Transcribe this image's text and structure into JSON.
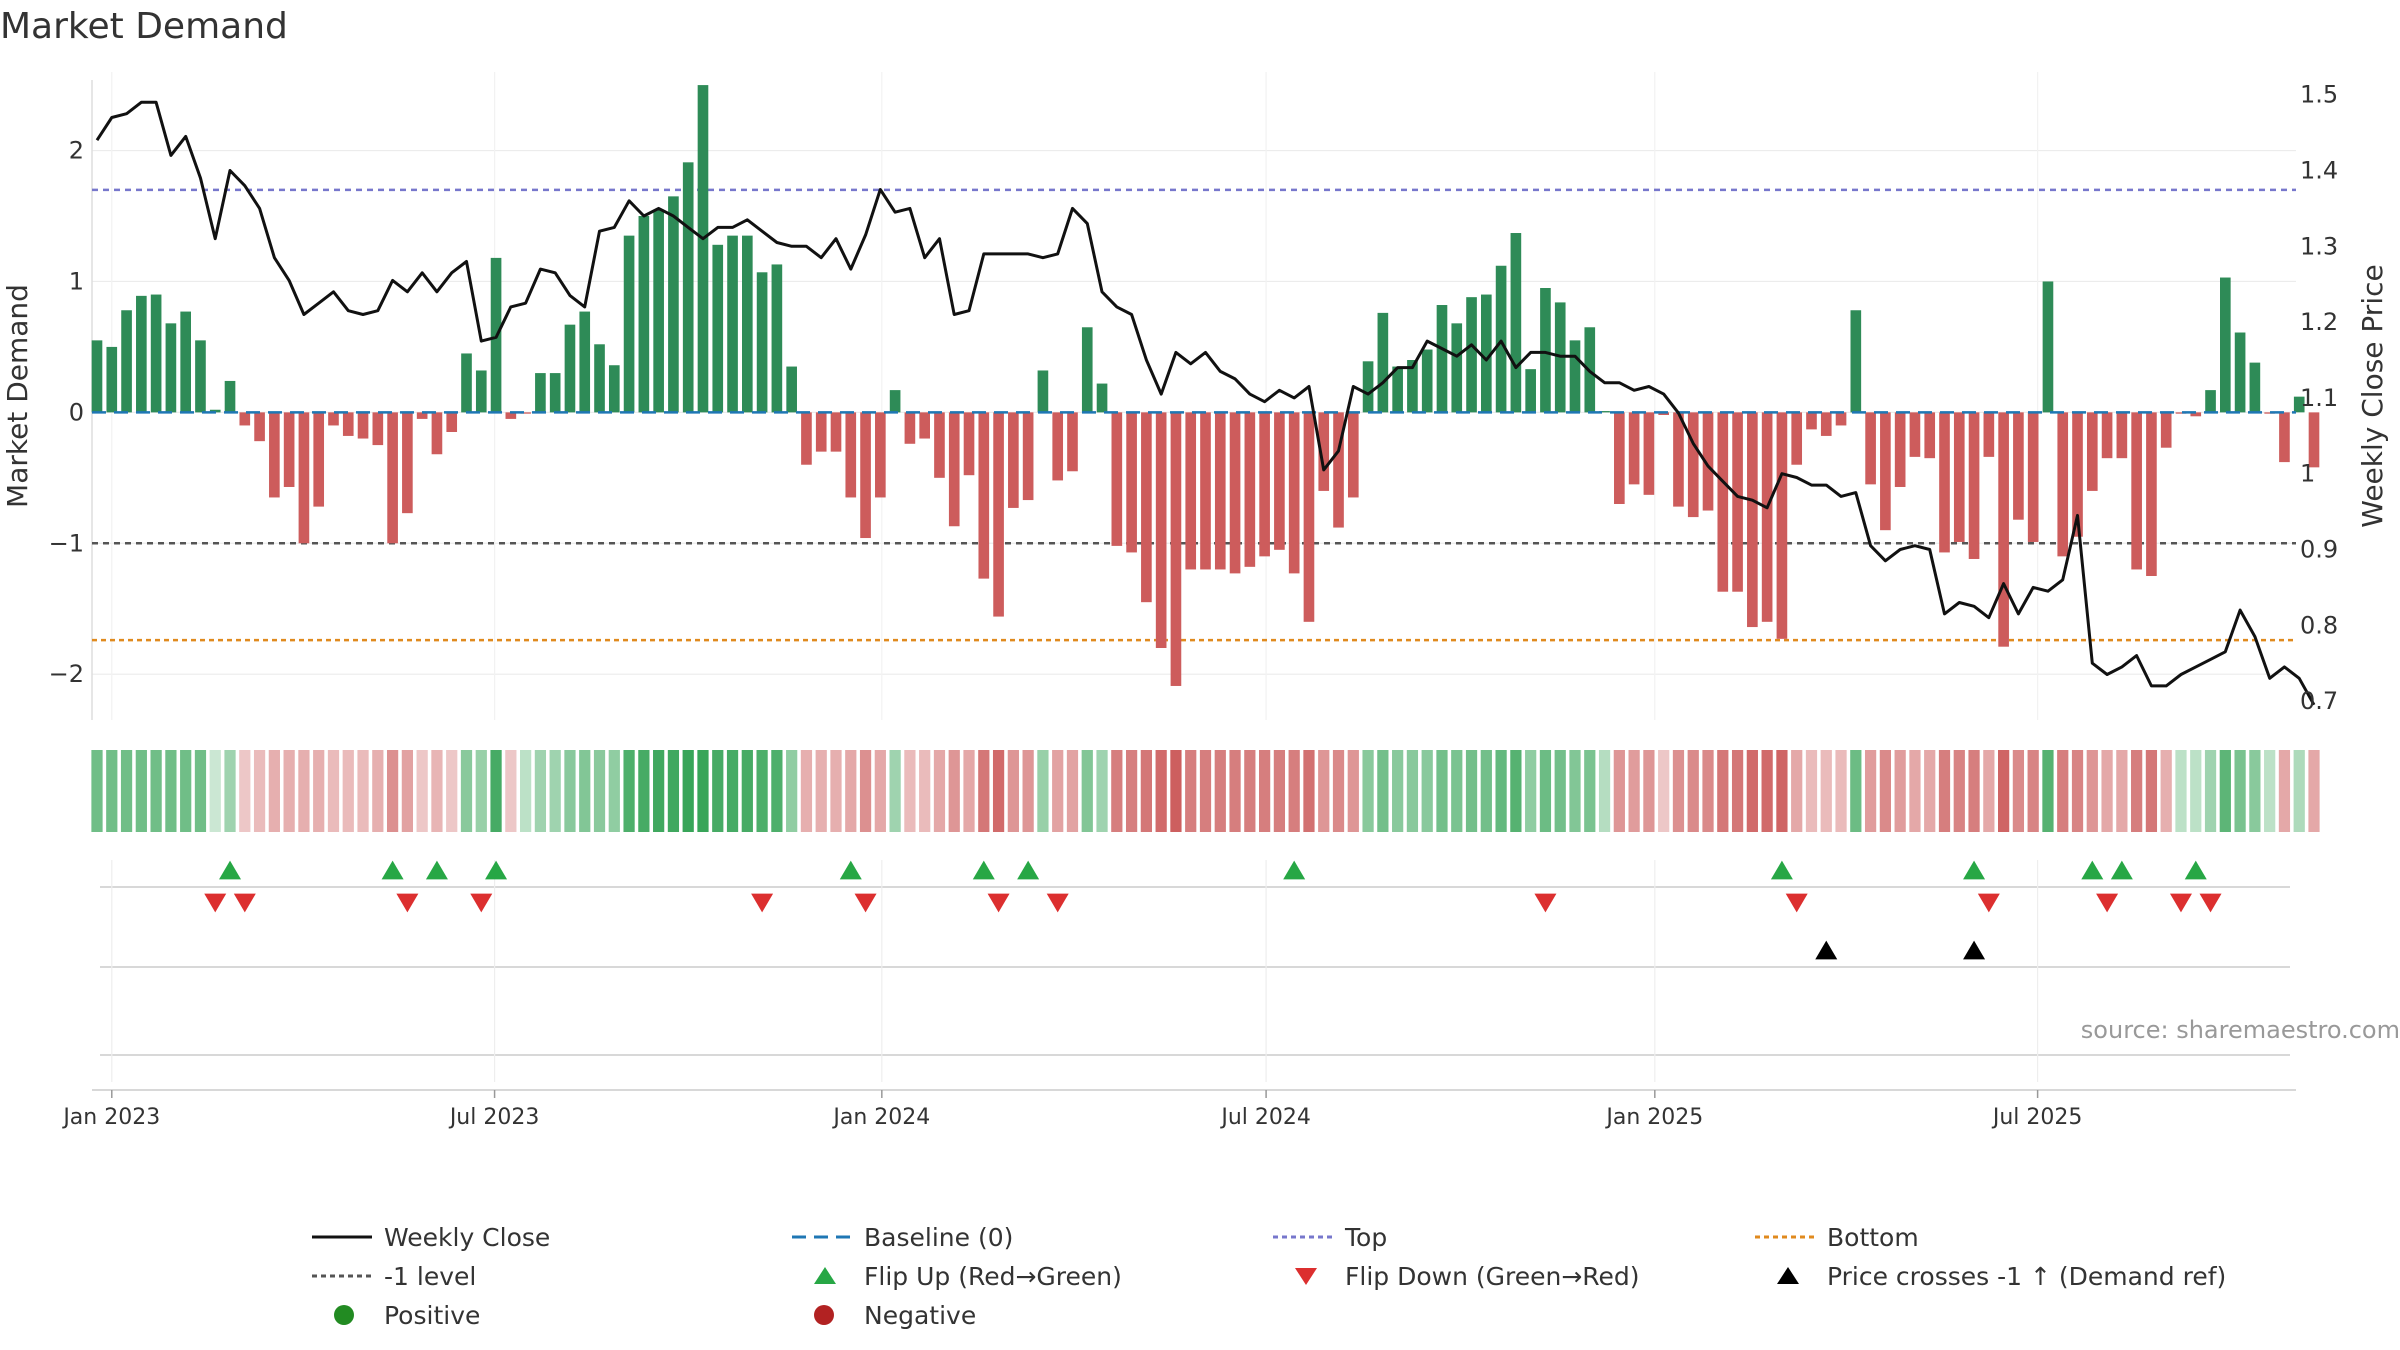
{
  "chart_title": "Market Demand",
  "source": "source: sharemaestro.com",
  "colors": {
    "positive": "#2E8B57",
    "negative": "#CD5C5C",
    "weekly_close": "#111111",
    "baseline": "#1f77b4",
    "top": "#7777cc",
    "minus1": "#555555",
    "bottom": "#e08a1e",
    "flip_up": "#27a745",
    "flip_down": "#dc2f2f",
    "cross_marker": "#000000",
    "legend_positive": "#228B22",
    "legend_negative": "#B22222"
  },
  "chart_data": {
    "type": "bar+line",
    "title": "Market Demand",
    "ylabel_left": "Market Demand",
    "ylabel_right": "Weekly Close Price",
    "ylim_left": [
      -2.35,
      2.6
    ],
    "ylim_right": [
      0.675,
      1.53
    ],
    "left_ticks": [
      2,
      1,
      0,
      -1,
      -2
    ],
    "left_tick_labels": [
      "2",
      "1",
      "0",
      "−1",
      "−2"
    ],
    "right_ticks": [
      1.5,
      1.4,
      1.3,
      1.2,
      1.1,
      1.0,
      0.9,
      0.8,
      0.7
    ],
    "right_tick_labels": [
      "1.5",
      "1.4",
      "1.3",
      "1.2",
      "1.1",
      "1",
      "0.9",
      "0.8",
      "0.7"
    ],
    "x_start": "2022-12-26",
    "week_days": 7,
    "x_ticks": [
      {
        "label": "Jan 2023",
        "week": 1.0
      },
      {
        "label": "Jul 2023",
        "week": 26.9
      },
      {
        "label": "Jan 2024",
        "week": 53.1
      },
      {
        "label": "Jul 2024",
        "week": 79.1
      },
      {
        "label": "Jan 2025",
        "week": 105.4
      },
      {
        "label": "Jul 2025",
        "week": 131.3
      }
    ],
    "reference_lines": {
      "top": 1.7,
      "minus1": -1.0,
      "bottom": -1.74,
      "baseline": 0
    },
    "market_demand": [
      0.55,
      0.5,
      0.78,
      0.89,
      0.9,
      0.68,
      0.77,
      0.55,
      0.02,
      0.24,
      -0.1,
      -0.22,
      -0.65,
      -0.57,
      -1.0,
      -0.72,
      -0.1,
      -0.18,
      -0.2,
      -0.25,
      -1.0,
      -0.77,
      -0.05,
      -0.32,
      -0.15,
      0.45,
      0.32,
      1.18,
      -0.05,
      -0.01,
      0.3,
      0.3,
      0.67,
      0.77,
      0.52,
      0.36,
      1.35,
      1.5,
      1.55,
      1.65,
      1.91,
      2.5,
      1.28,
      1.35,
      1.35,
      1.07,
      1.13,
      0.35,
      -0.4,
      -0.3,
      -0.3,
      -0.65,
      -0.96,
      -0.65,
      0.17,
      -0.24,
      -0.2,
      -0.5,
      -0.87,
      -0.48,
      -1.27,
      -1.56,
      -0.73,
      -0.67,
      0.32,
      -0.52,
      -0.45,
      0.65,
      0.22,
      -1.02,
      -1.07,
      -1.45,
      -1.8,
      -2.09,
      -1.2,
      -1.2,
      -1.2,
      -1.23,
      -1.18,
      -1.1,
      -1.05,
      -1.23,
      -1.6,
      -0.6,
      -0.88,
      -0.65,
      0.39,
      0.76,
      0.35,
      0.4,
      0.48,
      0.82,
      0.68,
      0.88,
      0.9,
      1.12,
      1.37,
      0.33,
      0.95,
      0.84,
      0.55,
      0.65,
      0.01,
      -0.7,
      -0.55,
      -0.63,
      -0.02,
      -0.72,
      -0.8,
      -0.75,
      -1.37,
      -1.37,
      -1.64,
      -1.6,
      -1.73,
      -0.4,
      -0.13,
      -0.18,
      -0.1,
      0.78,
      -0.55,
      -0.9,
      -0.57,
      -0.34,
      -0.35,
      -1.07,
      -0.99,
      -1.12,
      -0.34,
      -1.79,
      -0.82,
      -0.99,
      1.0,
      -1.1,
      -0.95,
      -0.6,
      -0.35,
      -0.35,
      -1.2,
      -1.25,
      -0.27,
      -0.01,
      -0.03,
      0.17,
      1.03,
      0.61,
      0.38,
      -0.01,
      -0.38,
      0.12,
      -0.42
    ],
    "weekly_close": [
      1.44,
      1.47,
      1.475,
      1.49,
      1.49,
      1.42,
      1.445,
      1.39,
      1.31,
      1.4,
      1.38,
      1.35,
      1.285,
      1.255,
      1.21,
      1.225,
      1.24,
      1.215,
      1.21,
      1.215,
      1.255,
      1.24,
      1.265,
      1.24,
      1.265,
      1.28,
      1.175,
      1.18,
      1.22,
      1.225,
      1.27,
      1.265,
      1.235,
      1.22,
      1.32,
      1.325,
      1.36,
      1.34,
      1.35,
      1.34,
      1.325,
      1.31,
      1.325,
      1.325,
      1.335,
      1.32,
      1.305,
      1.3,
      1.3,
      1.285,
      1.31,
      1.27,
      1.315,
      1.375,
      1.345,
      1.35,
      1.285,
      1.31,
      1.21,
      1.215,
      1.29,
      1.29,
      1.29,
      1.29,
      1.285,
      1.29,
      1.35,
      1.33,
      1.24,
      1.22,
      1.21,
      1.15,
      1.105,
      1.16,
      1.145,
      1.16,
      1.135,
      1.125,
      1.105,
      1.095,
      1.11,
      1.1,
      1.115,
      1.005,
      1.03,
      1.115,
      1.105,
      1.12,
      1.14,
      1.14,
      1.175,
      1.165,
      1.155,
      1.17,
      1.15,
      1.175,
      1.14,
      1.16,
      1.16,
      1.155,
      1.155,
      1.135,
      1.12,
      1.12,
      1.11,
      1.115,
      1.105,
      1.08,
      1.04,
      1.01,
      0.99,
      0.97,
      0.965,
      0.955,
      1.0,
      0.995,
      0.985,
      0.985,
      0.97,
      0.975,
      0.905,
      0.885,
      0.9,
      0.905,
      0.9,
      0.815,
      0.83,
      0.825,
      0.81,
      0.855,
      0.815,
      0.85,
      0.845,
      0.86,
      0.945,
      0.75,
      0.735,
      0.745,
      0.76,
      0.72,
      0.72,
      0.735,
      0.745,
      0.755,
      0.765,
      0.82,
      0.785,
      0.73,
      0.745,
      0.73,
      0.695
    ],
    "strip_values": [
      0.62,
      0.62,
      0.62,
      0.62,
      0.62,
      0.62,
      0.62,
      0.62,
      0.0,
      0.3,
      -0.1,
      -0.2,
      -0.3,
      -0.3,
      -0.3,
      -0.3,
      -0.2,
      -0.2,
      -0.2,
      -0.3,
      -0.55,
      -0.4,
      -0.1,
      -0.25,
      -0.1,
      0.45,
      0.35,
      0.9,
      -0.1,
      0.1,
      0.3,
      0.3,
      0.45,
      0.5,
      0.45,
      0.4,
      0.85,
      0.9,
      0.95,
      0.95,
      1.0,
      1.15,
      0.9,
      0.9,
      0.9,
      0.85,
      0.85,
      0.4,
      -0.3,
      -0.3,
      -0.3,
      -0.35,
      -0.55,
      -0.35,
      0.3,
      -0.2,
      -0.2,
      -0.35,
      -0.5,
      -0.35,
      -0.75,
      -0.85,
      -0.5,
      -0.5,
      0.35,
      -0.4,
      -0.4,
      0.5,
      0.3,
      -0.7,
      -0.7,
      -0.75,
      -0.85,
      -0.95,
      -0.7,
      -0.7,
      -0.7,
      -0.7,
      -0.7,
      -0.7,
      -0.7,
      -0.7,
      -0.8,
      -0.5,
      -0.6,
      -0.5,
      0.45,
      0.6,
      0.45,
      0.45,
      0.45,
      0.6,
      0.55,
      0.6,
      0.6,
      0.7,
      0.8,
      0.4,
      0.65,
      0.6,
      0.5,
      0.55,
      0.15,
      -0.5,
      -0.45,
      -0.5,
      -0.1,
      -0.55,
      -0.6,
      -0.6,
      -0.75,
      -0.75,
      -0.85,
      -0.85,
      -0.9,
      -0.35,
      -0.2,
      -0.2,
      -0.2,
      0.65,
      -0.45,
      -0.6,
      -0.45,
      -0.35,
      -0.35,
      -0.7,
      -0.65,
      -0.7,
      -0.35,
      -0.9,
      -0.6,
      -0.65,
      0.8,
      -0.7,
      -0.65,
      -0.5,
      -0.35,
      -0.35,
      -0.7,
      -0.75,
      -0.3,
      0.1,
      0.1,
      0.3,
      0.75,
      0.55,
      0.45,
      0.1,
      -0.35,
      0.2,
      -0.35
    ],
    "flip_up_weeks": [
      9,
      20,
      23,
      27,
      51,
      60,
      63,
      81,
      114,
      127,
      135,
      137,
      142
    ],
    "flip_down_weeks": [
      8,
      10,
      21,
      26,
      45,
      52,
      61,
      65,
      98,
      115,
      128,
      136,
      141,
      143
    ],
    "price_cross_weeks": [
      117,
      127
    ]
  },
  "legend": {
    "weekly_close": "Weekly Close",
    "baseline": "Baseline (0)",
    "top": "Top",
    "bottom": "Bottom",
    "minus1": "-1 level",
    "flip_up": "Flip Up (Red→Green)",
    "flip_down": "Flip Down (Green→Red)",
    "price_cross": "Price crosses -1 ↑ (Demand ref)",
    "positive": "Positive",
    "negative": "Negative"
  }
}
